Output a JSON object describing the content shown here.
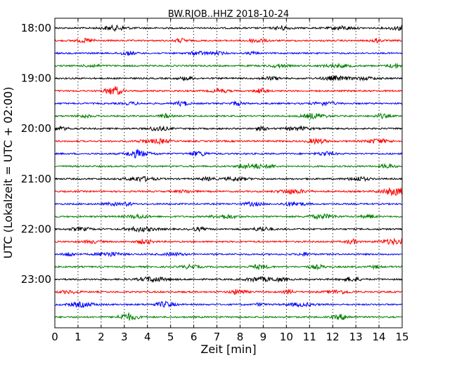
{
  "chart_data": {
    "type": "line",
    "title": "BW.RJOB..HHZ 2018-10-24",
    "xlabel": "Zeit  [min]",
    "ylabel": "UTC (Lokalzeit = UTC + 02:00)",
    "xlim": [
      0,
      15
    ],
    "x_ticks": [
      "0",
      "1",
      "2",
      "3",
      "4",
      "5",
      "6",
      "7",
      "8",
      "9",
      "10",
      "11",
      "12",
      "13",
      "14",
      "15"
    ],
    "y_ticks": [
      "18:00",
      "19:00",
      "20:00",
      "21:00",
      "22:00",
      "23:00"
    ],
    "grid": "vertical dotted at each minute",
    "trace_colors": [
      "#000000",
      "#ff0000",
      "#0000ff",
      "#008000"
    ],
    "traces": [
      {
        "start": "18:00"
      },
      {
        "start": "18:15"
      },
      {
        "start": "18:30"
      },
      {
        "start": "18:45"
      },
      {
        "start": "19:00"
      },
      {
        "start": "19:15"
      },
      {
        "start": "19:30"
      },
      {
        "start": "19:45"
      },
      {
        "start": "20:00"
      },
      {
        "start": "20:15"
      },
      {
        "start": "20:30"
      },
      {
        "start": "20:45"
      },
      {
        "start": "21:00"
      },
      {
        "start": "21:15"
      },
      {
        "start": "21:30"
      },
      {
        "start": "21:45"
      },
      {
        "start": "22:00"
      },
      {
        "start": "22:15"
      },
      {
        "start": "22:30"
      },
      {
        "start": "22:45"
      },
      {
        "start": "23:00"
      },
      {
        "start": "23:15"
      },
      {
        "start": "23:30"
      },
      {
        "start": "23:45"
      }
    ]
  }
}
